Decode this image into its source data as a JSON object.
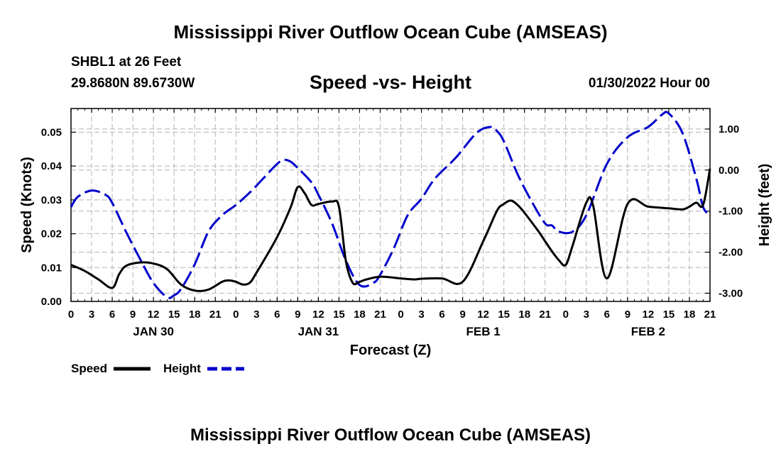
{
  "page": {
    "title": "Mississippi River Outflow Ocean Cube (AMSEAS)",
    "title_repeat": "Mississippi River Outflow Ocean Cube (AMSEAS)",
    "station": "SHBL1 at 26 Feet",
    "coords": "29.8680N  89.6730W",
    "subtitle": "Speed -vs- Height",
    "datetime": "01/30/2022 Hour 00"
  },
  "legend": {
    "speed_label": "Speed",
    "height_label": "Height"
  },
  "colors": {
    "speed": "#000000",
    "height": "#0000cc",
    "grid": "#b4b4b4"
  },
  "chart_data": {
    "type": "line",
    "title": "Speed -vs- Height",
    "xlabel": "Forecast (Z)",
    "ylabel": "Speed (Knots)",
    "y2label": "Height (feet)",
    "x_unit": "hours from 01/30/2022 00Z",
    "xlim": [
      0,
      93
    ],
    "ylim": [
      0,
      0.057
    ],
    "y2lim": [
      -3.2,
      1.5
    ],
    "x_ticks": [
      0,
      3,
      6,
      9,
      12,
      15,
      18,
      21,
      24,
      27,
      30,
      33,
      36,
      39,
      42,
      45,
      48,
      51,
      54,
      57,
      60,
      63,
      66,
      69,
      72,
      75,
      78,
      81,
      84,
      87,
      90,
      93
    ],
    "x_tick_labels": [
      "0",
      "3",
      "6",
      "9",
      "12",
      "15",
      "18",
      "21",
      "0",
      "3",
      "6",
      "9",
      "12",
      "15",
      "18",
      "21",
      "0",
      "3",
      "6",
      "9",
      "12",
      "15",
      "18",
      "21",
      "0",
      "3",
      "6",
      "9",
      "12",
      "15",
      "18",
      "21"
    ],
    "y_ticks": [
      0,
      0.01,
      0.02,
      0.03,
      0.04,
      0.05
    ],
    "y_tick_labels": [
      "0.00",
      "0.01",
      "0.02",
      "0.03",
      "0.04",
      "0.05"
    ],
    "y2_ticks": [
      -3,
      -2,
      -1,
      0,
      1
    ],
    "y2_tick_labels": [
      "-3.00",
      "-2.00",
      "-1.00",
      "0.00",
      "1.00"
    ],
    "day_labels": [
      {
        "x": 12,
        "label": "JAN 30"
      },
      {
        "x": 36,
        "label": "JAN 31"
      },
      {
        "x": 60,
        "label": "FEB 1"
      },
      {
        "x": 84,
        "label": "FEB 2"
      }
    ],
    "series": [
      {
        "name": "Speed",
        "axis": "left",
        "style": "solid",
        "x": [
          0,
          2,
          4,
          6,
          7,
          8,
          10,
          12,
          14,
          16,
          18,
          20,
          22,
          23,
          24,
          25,
          26,
          27,
          30,
          32,
          33,
          34,
          35,
          36,
          38,
          39,
          40,
          41,
          42,
          43,
          45,
          48,
          50,
          51,
          54,
          57,
          60,
          62,
          63,
          64,
          65,
          66,
          68,
          69,
          70,
          71,
          72,
          73,
          75,
          76,
          78,
          81,
          84,
          87,
          89,
          90,
          91,
          92,
          93
        ],
        "y": [
          0.0108,
          0.009,
          0.0065,
          0.004,
          0.008,
          0.0105,
          0.0115,
          0.0112,
          0.0095,
          0.005,
          0.0032,
          0.0035,
          0.0058,
          0.0062,
          0.0058,
          0.005,
          0.0055,
          0.0085,
          0.019,
          0.028,
          0.0338,
          0.032,
          0.0285,
          0.0288,
          0.0295,
          0.028,
          0.012,
          0.0055,
          0.0058,
          0.0065,
          0.0073,
          0.0068,
          0.0065,
          0.0067,
          0.0068,
          0.0058,
          0.0178,
          0.0268,
          0.0288,
          0.0298,
          0.0285,
          0.0262,
          0.0208,
          0.0178,
          0.0148,
          0.0122,
          0.0108,
          0.0165,
          0.0292,
          0.0282,
          0.0068,
          0.0288,
          0.028,
          0.0275,
          0.0272,
          0.028,
          0.0292,
          0.0285,
          0.0392
        ]
      },
      {
        "name": "Height",
        "axis": "right",
        "style": "dashed",
        "x": [
          0,
          1,
          3,
          5,
          6,
          8,
          10,
          12,
          14,
          15,
          16,
          18,
          20,
          22,
          24,
          26,
          28,
          30,
          31,
          32,
          33,
          35,
          36,
          38,
          40,
          42,
          44,
          45,
          47,
          49,
          51,
          53,
          56,
          59,
          61,
          62,
          63,
          65,
          67,
          69,
          70,
          71,
          73,
          75,
          78,
          81,
          84,
          86,
          87,
          89,
          91,
          92,
          93
        ],
        "y": [
          -0.9,
          -0.65,
          -0.5,
          -0.6,
          -0.8,
          -1.5,
          -2.15,
          -2.75,
          -3.1,
          -3.05,
          -2.9,
          -2.3,
          -1.5,
          -1.1,
          -0.85,
          -0.55,
          -0.2,
          0.15,
          0.25,
          0.2,
          0.05,
          -0.3,
          -0.6,
          -1.3,
          -2.2,
          -2.8,
          -2.75,
          -2.55,
          -1.9,
          -1.1,
          -0.7,
          -0.2,
          0.3,
          0.9,
          1.05,
          0.95,
          0.7,
          -0.1,
          -0.75,
          -1.3,
          -1.35,
          -1.5,
          -1.5,
          -1.1,
          0.15,
          0.8,
          1.05,
          1.35,
          1.38,
          0.9,
          -0.2,
          -0.9,
          -1.1
        ]
      }
    ]
  }
}
